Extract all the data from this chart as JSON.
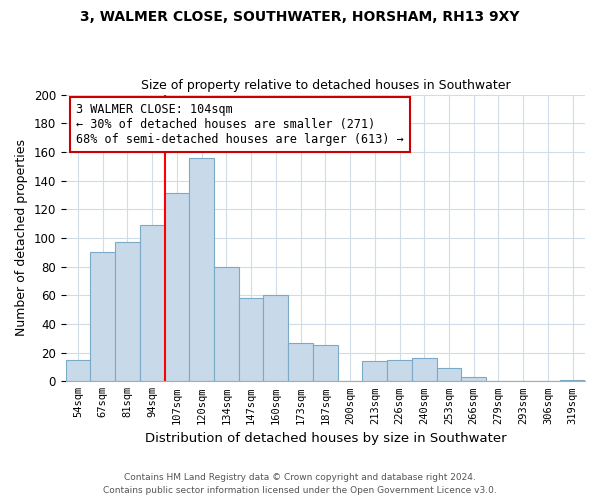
{
  "title": "3, WALMER CLOSE, SOUTHWATER, HORSHAM, RH13 9XY",
  "subtitle": "Size of property relative to detached houses in Southwater",
  "xlabel": "Distribution of detached houses by size in Southwater",
  "ylabel": "Number of detached properties",
  "bar_labels": [
    "54sqm",
    "67sqm",
    "81sqm",
    "94sqm",
    "107sqm",
    "120sqm",
    "134sqm",
    "147sqm",
    "160sqm",
    "173sqm",
    "187sqm",
    "200sqm",
    "213sqm",
    "226sqm",
    "240sqm",
    "253sqm",
    "266sqm",
    "279sqm",
    "293sqm",
    "306sqm",
    "319sqm"
  ],
  "bar_values": [
    15,
    90,
    97,
    109,
    131,
    156,
    80,
    58,
    60,
    27,
    25,
    0,
    14,
    15,
    16,
    9,
    3,
    0,
    0,
    0,
    1
  ],
  "bar_color": "#c8daea",
  "bar_edge_color": "#7aaac8",
  "vline_color": "red",
  "vline_x_index": 4,
  "annotation_title": "3 WALMER CLOSE: 104sqm",
  "annotation_line1": "← 30% of detached houses are smaller (271)",
  "annotation_line2": "68% of semi-detached houses are larger (613) →",
  "annotation_box_color": "#ffffff",
  "annotation_box_edge": "#cc0000",
  "ylim": [
    0,
    200
  ],
  "yticks": [
    0,
    20,
    40,
    60,
    80,
    100,
    120,
    140,
    160,
    180,
    200
  ],
  "grid_color": "#d0dde8",
  "footer1": "Contains HM Land Registry data © Crown copyright and database right 2024.",
  "footer2": "Contains public sector information licensed under the Open Government Licence v3.0."
}
